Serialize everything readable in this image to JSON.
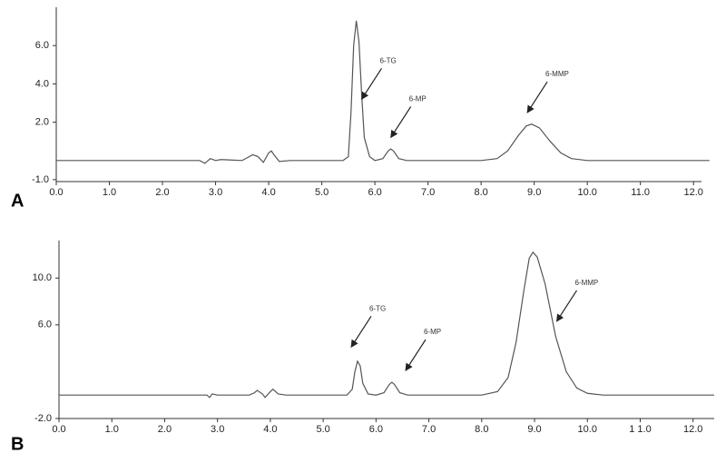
{
  "chart_data": [
    {
      "type": "line",
      "label": "A",
      "x": [
        0,
        2.7,
        2.8,
        2.9,
        3.0,
        3.1,
        3.5,
        3.6,
        3.7,
        3.8,
        3.9,
        4.0,
        4.05,
        4.1,
        4.2,
        4.4,
        5.4,
        5.5,
        5.55,
        5.6,
        5.65,
        5.7,
        5.75,
        5.8,
        5.9,
        6.0,
        6.15,
        6.25,
        6.3,
        6.35,
        6.45,
        6.6,
        8.0,
        8.3,
        8.5,
        8.7,
        8.85,
        8.95,
        9.1,
        9.3,
        9.5,
        9.7,
        10.0,
        12.3
      ],
      "series": [
        {
          "color": "#555555",
          "values": [
            0,
            0,
            -0.15,
            0.1,
            0,
            0.05,
            0,
            0.15,
            0.3,
            0.2,
            -0.1,
            0.4,
            0.5,
            0.3,
            -0.05,
            0,
            0,
            0.2,
            2.5,
            6.0,
            7.3,
            6.2,
            3.5,
            1.2,
            0.2,
            0,
            0.1,
            0.5,
            0.6,
            0.5,
            0.1,
            0,
            0,
            0.1,
            0.5,
            1.3,
            1.8,
            1.9,
            1.7,
            1.0,
            0.4,
            0.1,
            0,
            0
          ]
        }
      ],
      "xlim": [
        0,
        12.15
      ],
      "xticks": [
        {
          "value": 0,
          "label": "0.0"
        },
        {
          "value": 1,
          "label": "1.0"
        },
        {
          "value": 2,
          "label": "2.0"
        },
        {
          "value": 3,
          "label": "3.0"
        },
        {
          "value": 4,
          "label": "4.0"
        },
        {
          "value": 5,
          "label": "5.0"
        },
        {
          "value": 6,
          "label": "6.0"
        },
        {
          "value": 7,
          "label": "7.0"
        },
        {
          "value": 8,
          "label": "8.0"
        },
        {
          "value": 9,
          "label": "9.0"
        },
        {
          "value": 10,
          "label": "10.0"
        },
        {
          "value": 11,
          "label": "11.0"
        },
        {
          "value": 12,
          "label": "12.0"
        }
      ],
      "ylim": [
        -1.1,
        8
      ],
      "yticks": [
        {
          "value": -1,
          "label": "-1.0"
        },
        {
          "value": 2,
          "label": "2.0"
        },
        {
          "value": 4,
          "label": "4.0"
        },
        {
          "value": 6,
          "label": "6.0"
        }
      ],
      "annotations": [
        {
          "text": "6-TG",
          "x": 5.75,
          "y": 3.2
        },
        {
          "text": "6-MP",
          "x": 6.3,
          "y": 1.2
        },
        {
          "text": "6-MMP",
          "x": 8.87,
          "y": 2.5
        }
      ]
    },
    {
      "type": "line",
      "label": "B",
      "x": [
        0,
        2.8,
        2.85,
        2.9,
        3.0,
        3.6,
        3.7,
        3.75,
        3.85,
        3.9,
        4.0,
        4.05,
        4.15,
        4.3,
        5.45,
        5.55,
        5.6,
        5.65,
        5.7,
        5.75,
        5.85,
        6.0,
        6.15,
        6.25,
        6.3,
        6.35,
        6.45,
        6.6,
        8.0,
        8.3,
        8.5,
        8.65,
        8.8,
        8.9,
        8.97,
        9.05,
        9.2,
        9.4,
        9.6,
        9.8,
        10.0,
        10.3,
        12.4
      ],
      "series": [
        {
          "color": "#555555",
          "values": [
            0,
            0,
            -0.2,
            0.1,
            0,
            0,
            0.2,
            0.4,
            0.1,
            -0.2,
            0.3,
            0.5,
            0.1,
            0,
            0,
            0.5,
            2.0,
            2.9,
            2.5,
            1.0,
            0.1,
            0,
            0.2,
            0.9,
            1.1,
            0.9,
            0.2,
            0,
            0,
            0.3,
            1.5,
            4.5,
            9.0,
            11.7,
            12.2,
            11.8,
            9.5,
            5.0,
            2.0,
            0.6,
            0.15,
            0,
            0
          ]
        }
      ],
      "xlim": [
        0,
        12.4
      ],
      "xticks": [
        {
          "value": 0,
          "label": "0.0"
        },
        {
          "value": 1,
          "label": "1.0"
        },
        {
          "value": 2,
          "label": "2.0"
        },
        {
          "value": 3,
          "label": "3.0"
        },
        {
          "value": 4,
          "label": "4.0"
        },
        {
          "value": 5,
          "label": "5.0"
        },
        {
          "value": 6,
          "label": "6.0"
        },
        {
          "value": 7,
          "label": "7.0"
        },
        {
          "value": 8,
          "label": "8.0"
        },
        {
          "value": 9,
          "label": "9.0"
        },
        {
          "value": 10,
          "label": "10.0"
        },
        {
          "value": 11,
          "label": "1 1.0"
        },
        {
          "value": 12,
          "label": "12.0"
        }
      ],
      "ylim": [
        -2,
        13.2
      ],
      "yticks": [
        {
          "value": -2,
          "label": "-2.0"
        },
        {
          "value": 6,
          "label": "6.0"
        },
        {
          "value": 10,
          "label": "10.0"
        }
      ],
      "annotations": [
        {
          "text": "6-TG",
          "x": 5.53,
          "y": 4.1
        },
        {
          "text": "6-MP",
          "x": 6.56,
          "y": 2.1
        },
        {
          "text": "6-MMP",
          "x": 9.42,
          "y": 6.3
        }
      ]
    }
  ]
}
